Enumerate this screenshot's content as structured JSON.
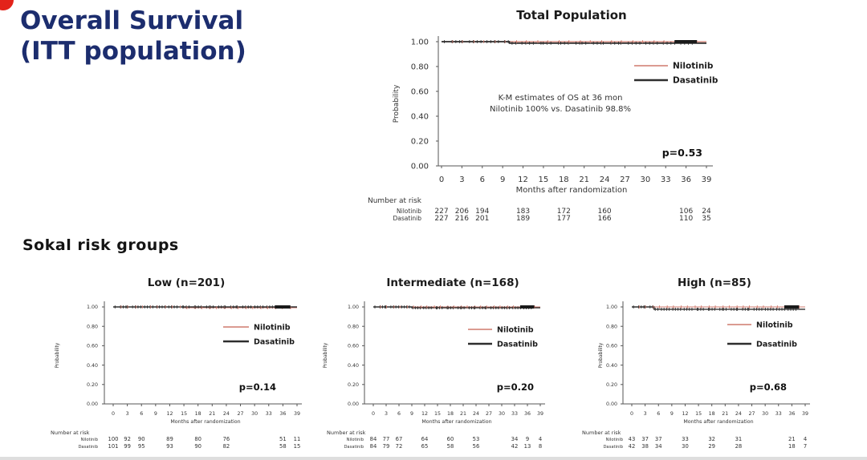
{
  "slide": {
    "title_line1": "Overall Survival",
    "title_line2": "(ITT population)",
    "section_heading": "Sokal risk groups",
    "title_color": "#1c2d6e",
    "red_dot_color": "#e3231a",
    "background_color": "#ffffff"
  },
  "colors": {
    "nilotinib": "#cf7a6d",
    "dasatinib": "#2e2e2e",
    "axis": "#555555",
    "text": "#333333"
  },
  "chart_data": [
    {
      "id": "total-population",
      "type": "line",
      "subtype": "kaplan-meier",
      "title": "Total Population",
      "xlabel": "Months after randomization",
      "ylabel": "Probability",
      "xlim": [
        0,
        39
      ],
      "ylim": [
        0.0,
        1.0
      ],
      "xticks": [
        0,
        3,
        6,
        9,
        12,
        15,
        18,
        21,
        24,
        27,
        30,
        33,
        36,
        39
      ],
      "yticks": [
        "1.00",
        "0.80",
        "0.60",
        "0.40",
        "0.20",
        "0.00"
      ],
      "legend": [
        "Nilotinib",
        "Dasatinib"
      ],
      "annotation": [
        "K-M estimates of OS at 36 mon",
        "Nilotinib 100% vs. Dasatinib 98.8%"
      ],
      "p_value": "p=0.53",
      "series": [
        {
          "name": "Nilotinib",
          "color": "#cf7a6d",
          "points": [
            [
              0,
              1.0
            ],
            [
              39,
              1.0
            ]
          ]
        },
        {
          "name": "Dasatinib",
          "color": "#2e2e2e",
          "points": [
            [
              0,
              1.0
            ],
            [
              10,
              1.0
            ],
            [
              10,
              0.988
            ],
            [
              39,
              0.988
            ]
          ]
        }
      ],
      "number_at_risk": {
        "header": "Number at risk",
        "months": [
          0,
          3,
          6,
          12,
          18,
          24,
          36,
          39
        ],
        "rows": [
          {
            "label": "Nilotinib",
            "values": [
              "227",
              "206",
              "194",
              "183",
              "172",
              "160",
              "106",
              "24"
            ]
          },
          {
            "label": "Dasatinib",
            "values": [
              "227",
              "216",
              "201",
              "189",
              "177",
              "166",
              "110",
              "35"
            ]
          }
        ]
      }
    },
    {
      "id": "sokal-low",
      "type": "line",
      "subtype": "kaplan-meier",
      "title": "Low (n=201)",
      "xlabel": "Months after randomization",
      "ylabel": "Probability",
      "xlim": [
        0,
        39
      ],
      "ylim": [
        0.0,
        1.0
      ],
      "xticks": [
        0,
        3,
        6,
        9,
        12,
        15,
        18,
        21,
        24,
        27,
        30,
        33,
        36,
        39
      ],
      "yticks": [
        "1.00",
        "0.80",
        "0.60",
        "0.40",
        "0.20",
        "0.00"
      ],
      "legend": [
        "Nilotinib",
        "Dasatinib"
      ],
      "annotation": [],
      "p_value": "p=0.14",
      "series": [
        {
          "name": "Nilotinib",
          "color": "#cf7a6d",
          "points": [
            [
              0,
              1.0
            ],
            [
              15,
              1.0
            ],
            [
              15,
              0.992
            ],
            [
              39,
              0.992
            ]
          ]
        },
        {
          "name": "Dasatinib",
          "color": "#2e2e2e",
          "points": [
            [
              0,
              1.0
            ],
            [
              39,
              1.0
            ]
          ]
        }
      ],
      "number_at_risk": {
        "header": "Number at risk",
        "months": [
          0,
          3,
          6,
          12,
          18,
          24,
          36,
          39
        ],
        "rows": [
          {
            "label": "Nilotinib",
            "values": [
              "100",
              "92",
              "90",
              "89",
              "80",
              "76",
              "51",
              "11"
            ]
          },
          {
            "label": "Dasatinib",
            "values": [
              "101",
              "99",
              "95",
              "93",
              "90",
              "82",
              "58",
              "15"
            ]
          }
        ]
      }
    },
    {
      "id": "sokal-intermediate",
      "type": "line",
      "subtype": "kaplan-meier",
      "title": "Intermediate (n=168)",
      "xlabel": "Months after randomization",
      "ylabel": "Probability",
      "xlim": [
        0,
        39
      ],
      "ylim": [
        0.0,
        1.0
      ],
      "xticks": [
        0,
        3,
        6,
        9,
        12,
        15,
        18,
        21,
        24,
        27,
        30,
        33,
        36,
        39
      ],
      "yticks": [
        "1.00",
        "0.80",
        "0.60",
        "0.40",
        "0.20",
        "0.00"
      ],
      "legend": [
        "Nilotinib",
        "Dasatinib"
      ],
      "annotation": [],
      "p_value": "p=0.20",
      "series": [
        {
          "name": "Nilotinib",
          "color": "#cf7a6d",
          "points": [
            [
              0,
              1.0
            ],
            [
              39,
              1.0
            ]
          ]
        },
        {
          "name": "Dasatinib",
          "color": "#2e2e2e",
          "points": [
            [
              0,
              1.0
            ],
            [
              9,
              1.0
            ],
            [
              9,
              0.991
            ],
            [
              39,
              0.991
            ]
          ]
        }
      ],
      "number_at_risk": {
        "header": "Number at risk",
        "months": [
          0,
          3,
          6,
          12,
          18,
          24,
          33,
          36,
          39
        ],
        "rows": [
          {
            "label": "Nilotinib",
            "values": [
              "84",
              "77",
              "67",
              "64",
              "60",
              "53",
              "34",
              "9",
              "4"
            ]
          },
          {
            "label": "Dasatinib",
            "values": [
              "84",
              "79",
              "72",
              "65",
              "58",
              "56",
              "42",
              "13",
              "8"
            ]
          }
        ]
      }
    },
    {
      "id": "sokal-high",
      "type": "line",
      "subtype": "kaplan-meier",
      "title": "High (n=85)",
      "xlabel": "Months after randomization",
      "ylabel": "Probability",
      "xlim": [
        0,
        39
      ],
      "ylim": [
        0.0,
        1.0
      ],
      "xticks": [
        0,
        3,
        6,
        9,
        12,
        15,
        18,
        21,
        24,
        27,
        30,
        33,
        36,
        39
      ],
      "yticks": [
        "1.00",
        "0.80",
        "0.60",
        "0.40",
        "0.20",
        "0.00"
      ],
      "legend": [
        "Nilotinib",
        "Dasatinib"
      ],
      "annotation": [],
      "p_value": "p=0.68",
      "series": [
        {
          "name": "Nilotinib",
          "color": "#cf7a6d",
          "points": [
            [
              0,
              1.0
            ],
            [
              39,
              1.0
            ]
          ]
        },
        {
          "name": "Dasatinib",
          "color": "#2e2e2e",
          "points": [
            [
              0,
              1.0
            ],
            [
              5,
              1.0
            ],
            [
              5,
              0.976
            ],
            [
              39,
              0.976
            ]
          ]
        }
      ],
      "number_at_risk": {
        "header": "Number at risk",
        "months": [
          0,
          3,
          6,
          12,
          18,
          24,
          36,
          39
        ],
        "rows": [
          {
            "label": "Nilotinib",
            "values": [
              "43",
              "37",
              "37",
              "33",
              "32",
              "31",
              "21",
              "4"
            ]
          },
          {
            "label": "Dasatinib",
            "values": [
              "42",
              "38",
              "34",
              "30",
              "29",
              "28",
              "18",
              "7"
            ]
          }
        ]
      }
    }
  ]
}
